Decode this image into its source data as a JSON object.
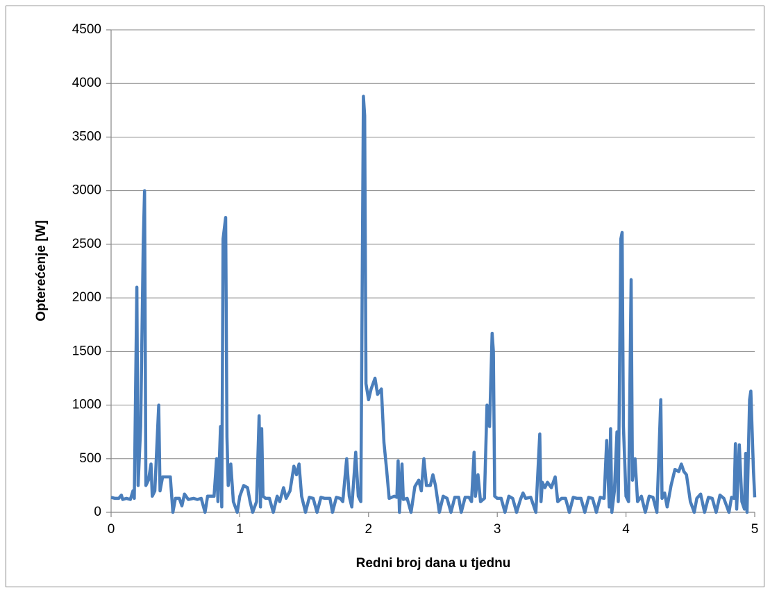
{
  "chart_data": {
    "type": "line",
    "xlabel": "Redni broj dana u tjednu",
    "ylabel": "Opterećenje [W]",
    "color": "#4a7ebb",
    "grid": true,
    "xlim": [
      0,
      5
    ],
    "xticks": [
      0,
      1,
      2,
      3,
      4,
      5
    ],
    "ylim": [
      0,
      4500
    ],
    "yticks": [
      0,
      500,
      1000,
      1500,
      2000,
      2500,
      3000,
      3500,
      4000,
      4500
    ],
    "x": [
      0,
      0.03,
      0.06,
      0.08,
      0.09,
      0.12,
      0.15,
      0.17,
      0.18,
      0.2,
      0.21,
      0.23,
      0.25,
      0.26,
      0.27,
      0.29,
      0.31,
      0.32,
      0.34,
      0.37,
      0.38,
      0.4,
      0.43,
      0.46,
      0.48,
      0.5,
      0.53,
      0.55,
      0.57,
      0.6,
      0.64,
      0.67,
      0.7,
      0.73,
      0.75,
      0.8,
      0.82,
      0.83,
      0.85,
      0.86,
      0.87,
      0.89,
      0.9,
      0.91,
      0.93,
      0.95,
      0.98,
      1.0,
      1.03,
      1.06,
      1.08,
      1.1,
      1.13,
      1.15,
      1.16,
      1.17,
      1.18,
      1.2,
      1.23,
      1.26,
      1.29,
      1.31,
      1.34,
      1.36,
      1.39,
      1.42,
      1.44,
      1.46,
      1.48,
      1.51,
      1.54,
      1.57,
      1.6,
      1.63,
      1.66,
      1.7,
      1.72,
      1.75,
      1.78,
      1.8,
      1.83,
      1.85,
      1.87,
      1.9,
      1.92,
      1.94,
      1.96,
      1.97,
      1.98,
      2.0,
      2.02,
      2.05,
      2.07,
      2.1,
      2.12,
      2.14,
      2.16,
      2.2,
      2.22,
      2.23,
      2.24,
      2.26,
      2.27,
      2.3,
      2.33,
      2.36,
      2.39,
      2.41,
      2.43,
      2.45,
      2.48,
      2.5,
      2.52,
      2.55,
      2.58,
      2.61,
      2.64,
      2.67,
      2.7,
      2.72,
      2.75,
      2.78,
      2.8,
      2.82,
      2.83,
      2.85,
      2.87,
      2.9,
      2.92,
      2.94,
      2.96,
      2.97,
      2.98,
      3.0,
      3.03,
      3.06,
      3.09,
      3.12,
      3.15,
      3.18,
      3.2,
      3.22,
      3.26,
      3.3,
      3.33,
      3.34,
      3.35,
      3.37,
      3.39,
      3.42,
      3.45,
      3.47,
      3.5,
      3.53,
      3.56,
      3.59,
      3.62,
      3.65,
      3.68,
      3.71,
      3.74,
      3.77,
      3.8,
      3.83,
      3.85,
      3.87,
      3.88,
      3.89,
      3.91,
      3.93,
      3.94,
      3.96,
      3.97,
      3.98,
      4.0,
      4.02,
      4.04,
      4.05,
      4.07,
      4.09,
      4.12,
      4.15,
      4.18,
      4.21,
      4.24,
      4.27,
      4.28,
      4.3,
      4.32,
      4.35,
      4.38,
      4.41,
      4.43,
      4.45,
      4.47,
      4.5,
      4.53,
      4.55,
      4.58,
      4.61,
      4.64,
      4.67,
      4.7,
      4.73,
      4.76,
      4.8,
      4.82,
      4.84,
      4.85,
      4.86,
      4.88,
      4.9,
      4.92,
      4.93,
      4.94,
      4.96,
      4.97,
      4.99,
      5.0
    ],
    "values": [
      140,
      130,
      130,
      160,
      120,
      130,
      120,
      200,
      130,
      2100,
      250,
      800,
      2500,
      3000,
      250,
      300,
      450,
      150,
      200,
      1000,
      200,
      330,
      330,
      330,
      0,
      130,
      130,
      60,
      170,
      120,
      130,
      120,
      130,
      0,
      150,
      150,
      500,
      100,
      800,
      50,
      2550,
      2750,
      700,
      250,
      450,
      100,
      0,
      150,
      250,
      230,
      100,
      0,
      100,
      900,
      50,
      780,
      150,
      130,
      130,
      0,
      150,
      100,
      230,
      130,
      200,
      430,
      350,
      450,
      150,
      0,
      140,
      130,
      0,
      140,
      130,
      130,
      0,
      140,
      130,
      100,
      500,
      150,
      50,
      560,
      150,
      100,
      3880,
      3700,
      1200,
      1050,
      1150,
      1250,
      1100,
      1150,
      650,
      400,
      130,
      150,
      140,
      480,
      0,
      450,
      120,
      130,
      0,
      240,
      300,
      200,
      500,
      250,
      250,
      350,
      250,
      0,
      150,
      130,
      0,
      140,
      140,
      0,
      140,
      140,
      100,
      560,
      150,
      350,
      100,
      130,
      1000,
      800,
      1670,
      1500,
      150,
      130,
      130,
      0,
      150,
      130,
      0,
      120,
      180,
      130,
      140,
      0,
      730,
      100,
      280,
      230,
      280,
      230,
      330,
      100,
      130,
      130,
      0,
      140,
      130,
      130,
      0,
      140,
      130,
      0,
      140,
      130,
      670,
      50,
      780,
      0,
      200,
      750,
      100,
      2550,
      2610,
      800,
      150,
      100,
      2170,
      300,
      500,
      100,
      150,
      0,
      150,
      140,
      0,
      1050,
      130,
      180,
      50,
      250,
      400,
      380,
      450,
      380,
      350,
      100,
      0,
      130,
      170,
      0,
      140,
      130,
      0,
      160,
      130,
      0,
      140,
      130,
      640,
      30,
      630,
      100,
      30,
      550,
      0,
      1050,
      1130,
      400,
      140
    ]
  }
}
